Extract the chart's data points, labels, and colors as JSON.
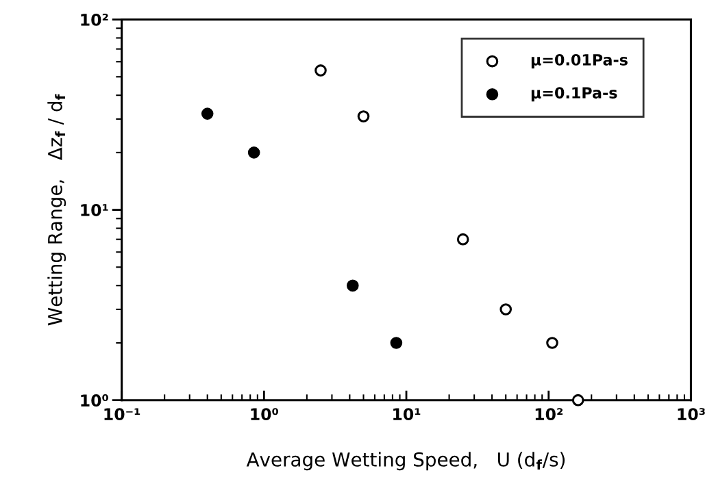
{
  "chart_data": {
    "type": "scatter",
    "xlabel": "Average Wetting Speed,   U (d$_{f}$/s)",
    "ylabel": "Wetting Range,   Δz$_{f}$ / d$_{f}$",
    "log": "xy",
    "xlim": [
      0.1,
      1000
    ],
    "ylim": [
      1,
      100
    ],
    "xticks": [
      {
        "value": 0.1,
        "label": "10⁻¹"
      },
      {
        "value": 1,
        "label": "10⁰"
      },
      {
        "value": 10,
        "label": "10¹"
      },
      {
        "value": 100,
        "label": "10²"
      },
      {
        "value": 1000,
        "label": "10³"
      }
    ],
    "yticks": [
      {
        "value": 1,
        "label": "10⁰"
      },
      {
        "value": 10,
        "label": "10¹"
      },
      {
        "value": 100,
        "label": "10²"
      }
    ],
    "marker": "circle",
    "grid": false,
    "legend": "top right",
    "series": [
      {
        "name": "μ=0.01Pa-s",
        "color": "#ffffff",
        "x": [
          2.5,
          5.0,
          25,
          50,
          106,
          161
        ],
        "values": [
          54,
          31,
          7.0,
          3.0,
          2.0,
          1.0
        ]
      },
      {
        "name": "μ=0.1Pa-s",
        "color": "#000000",
        "x": [
          0.4,
          0.85,
          4.2,
          8.5
        ],
        "values": [
          32,
          20,
          4.0,
          2.0
        ]
      }
    ]
  }
}
